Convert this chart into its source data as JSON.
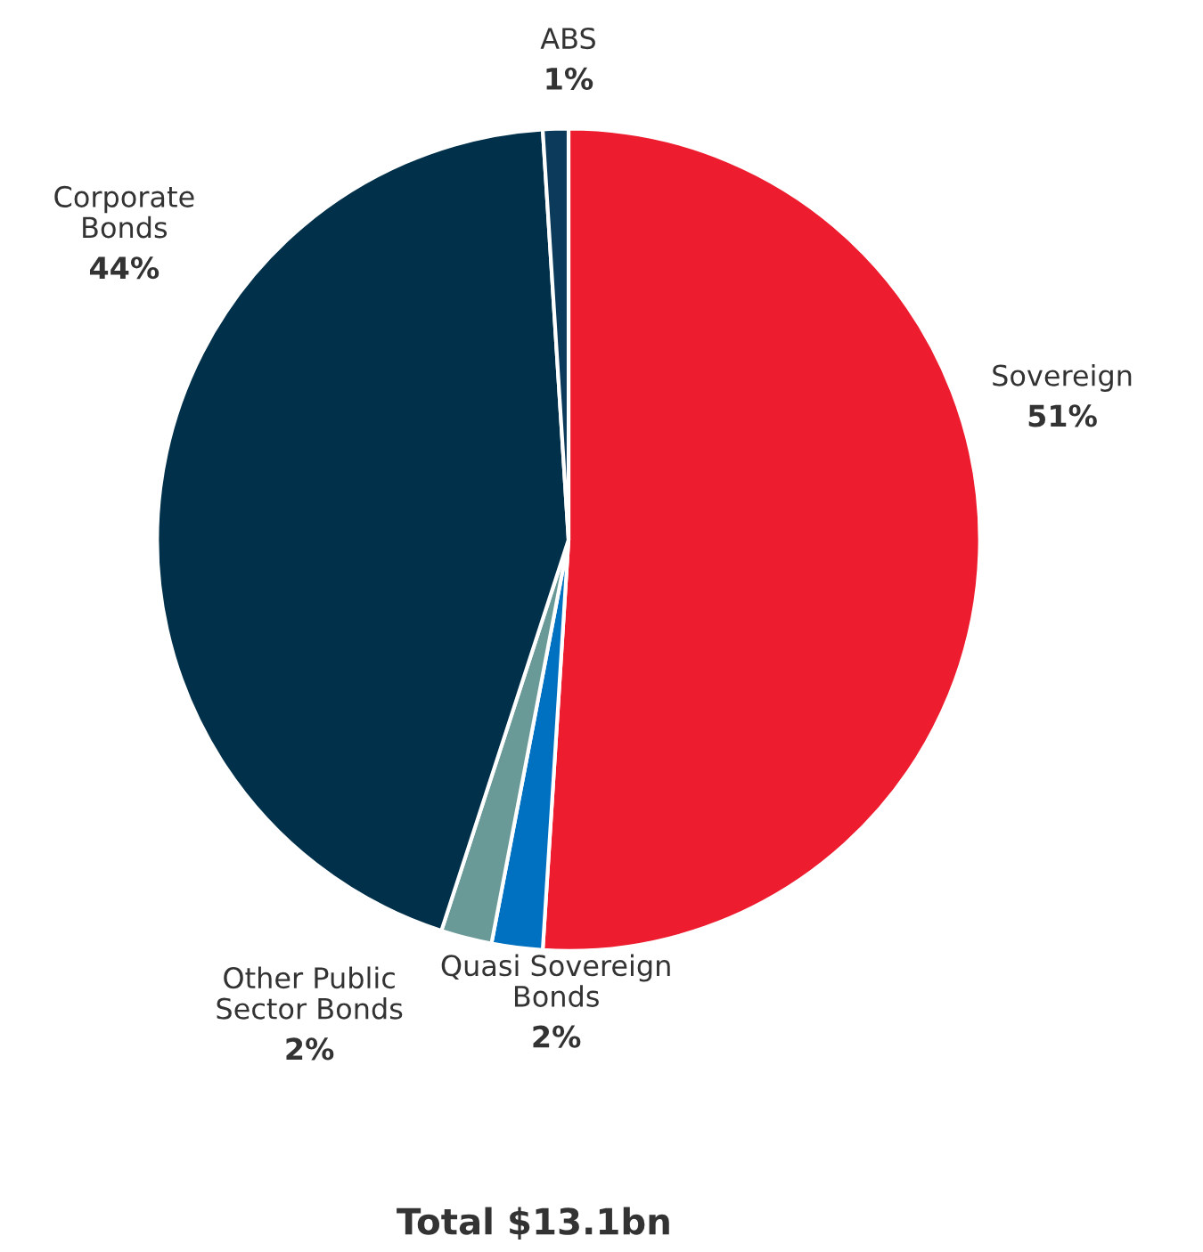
{
  "chart_data": {
    "type": "pie",
    "title": "Total $13.1bn",
    "categories": [
      "Sovereign",
      "Quasi Sovereign\nBonds",
      "Other Public\nSector Bonds",
      "Corporate\nBonds",
      "ABS"
    ],
    "values": [
      51,
      2,
      2,
      44,
      1
    ],
    "value_labels": [
      "51%",
      "2%",
      "2%",
      "44%",
      "1%"
    ],
    "colors": [
      "#ed1c2e",
      "#0070c0",
      "#6a9a98",
      "#00304a",
      "#0b3a5a"
    ],
    "legend": false
  }
}
